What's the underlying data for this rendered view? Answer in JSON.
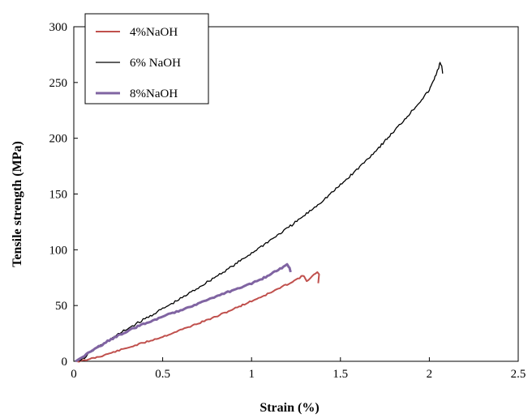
{
  "chart_data": {
    "type": "line",
    "title": "",
    "xlabel": "Strain (%)",
    "ylabel": "Tensile strength (MPa)",
    "xlim": [
      0,
      2.5
    ],
    "ylim": [
      0,
      300
    ],
    "xticks": [
      0,
      0.5,
      1,
      1.5,
      2,
      2.5
    ],
    "xtick_labels": [
      "0",
      "0.5",
      "1",
      "1.5",
      "2",
      "2.5"
    ],
    "yticks": [
      0,
      50,
      100,
      150,
      200,
      250,
      300
    ],
    "ytick_labels": [
      "0",
      "50",
      "100",
      "150",
      "200",
      "250",
      "300"
    ],
    "grid": false,
    "legend_position": "top-left",
    "series": [
      {
        "name": "4%NaOH",
        "color": "#c0504d",
        "x": [
          0.02,
          0.05,
          0.08,
          0.1,
          0.15,
          0.2,
          0.3,
          0.4,
          0.5,
          0.6,
          0.7,
          0.8,
          0.9,
          1.0,
          1.1,
          1.2,
          1.26,
          1.29,
          1.31,
          1.34,
          1.37,
          1.38,
          1.375
        ],
        "y": [
          0,
          0.5,
          1.5,
          2.5,
          4.5,
          7,
          12,
          17,
          22,
          28,
          34,
          40,
          47,
          54,
          61,
          69,
          74,
          77,
          72,
          76,
          80,
          78,
          70
        ]
      },
      {
        "name": "6% NaOH",
        "color": "#000000",
        "x": [
          0.03,
          0.05,
          0.08,
          0.1,
          0.2,
          0.3,
          0.4,
          0.5,
          0.6,
          0.7,
          0.8,
          0.9,
          1.0,
          1.1,
          1.2,
          1.3,
          1.4,
          1.5,
          1.6,
          1.7,
          1.8,
          1.9,
          2.0,
          2.05,
          2.06,
          2.07,
          2.075
        ],
        "y": [
          0,
          2,
          6,
          9,
          19,
          29,
          38,
          47,
          56,
          66,
          76,
          86,
          97,
          108,
          119,
          131,
          144,
          158,
          173,
          189,
          206,
          224,
          243,
          262,
          268,
          264,
          258
        ]
      },
      {
        "name": "8%NaOH",
        "color": "#8064a2",
        "x": [
          0.01,
          0.03,
          0.05,
          0.1,
          0.15,
          0.2,
          0.3,
          0.4,
          0.5,
          0.6,
          0.7,
          0.8,
          0.9,
          1.0,
          1.1,
          1.15,
          1.2,
          1.21,
          1.22
        ],
        "y": [
          0,
          2,
          4,
          9,
          14,
          19,
          27,
          34,
          40,
          46,
          52,
          58,
          64,
          70,
          77,
          82,
          87,
          85,
          80
        ]
      }
    ]
  }
}
